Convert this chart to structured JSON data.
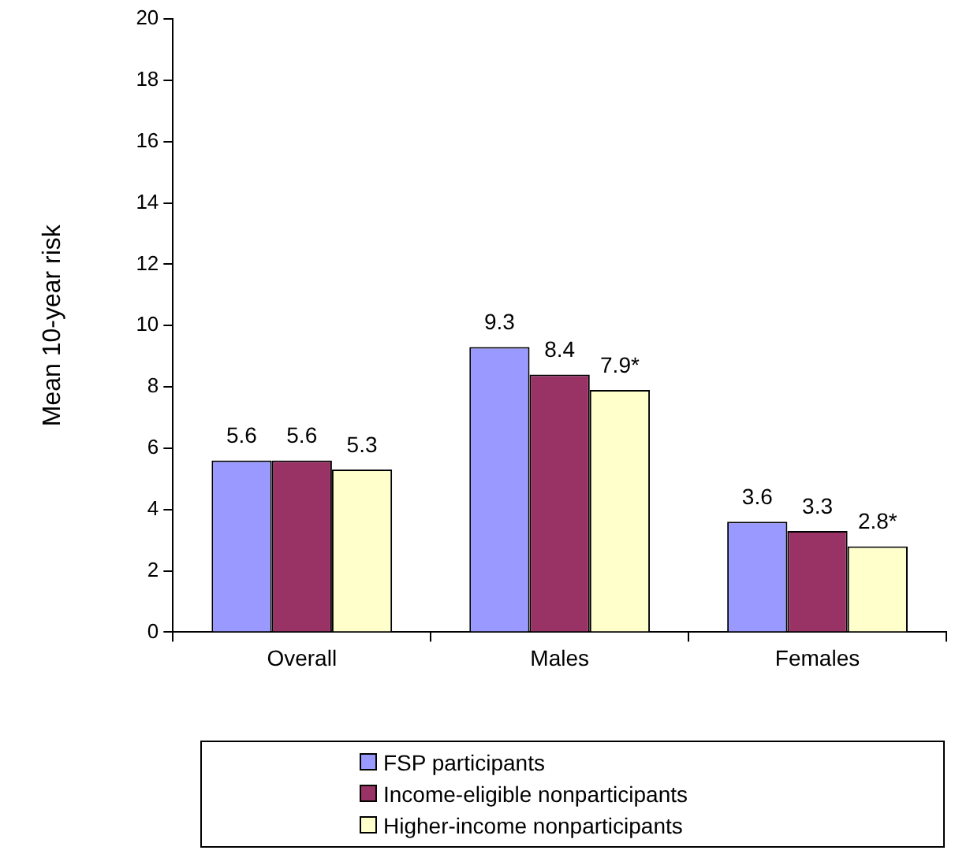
{
  "chart_data": {
    "type": "bar",
    "ylabel": "Mean 10-year risk",
    "categories": [
      "Overall",
      "Males",
      "Females"
    ],
    "series": [
      {
        "name": "FSP participants",
        "color": "#9999ff",
        "values": [
          5.6,
          9.3,
          3.6
        ],
        "value_labels": [
          "5.6",
          "9.3",
          "3.6"
        ]
      },
      {
        "name": "Income-eligible nonparticipants",
        "color": "#993366",
        "values": [
          5.6,
          8.4,
          3.3
        ],
        "value_labels": [
          "5.6",
          "8.4",
          "3.3"
        ]
      },
      {
        "name": "Higher-income nonparticipants",
        "color": "#ffffcc",
        "values": [
          5.3,
          7.9,
          2.8
        ],
        "value_labels": [
          "5.3",
          "7.9*",
          "2.8*"
        ]
      }
    ],
    "ylim": [
      0,
      20
    ],
    "yticks": [
      0,
      2,
      4,
      6,
      8,
      10,
      12,
      14,
      16,
      18,
      20
    ],
    "grid": false,
    "legend": "bottom"
  }
}
